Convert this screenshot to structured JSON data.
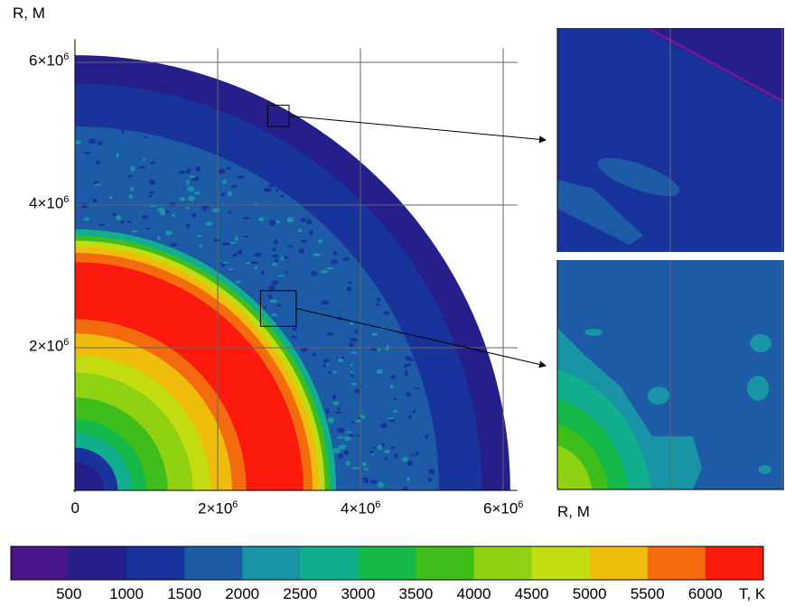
{
  "chart_data": {
    "type": "heatmap",
    "main_plot": {
      "ylabel": "R, M",
      "x_ticks": [
        {
          "value": 0,
          "label": "0"
        },
        {
          "value": 2000000,
          "label": "2×10",
          "exp": "6"
        },
        {
          "value": 4000000,
          "label": "4×10",
          "exp": "6"
        },
        {
          "value": 6000000,
          "label": "6×10",
          "exp": "6"
        }
      ],
      "y_ticks": [
        {
          "value": 2000000,
          "label": "2×10",
          "exp": "6"
        },
        {
          "value": 4000000,
          "label": "4×10",
          "exp": "6"
        },
        {
          "value": 6000000,
          "label": "6×10",
          "exp": "6"
        }
      ],
      "xlim": [
        0,
        6200000
      ],
      "ylim": [
        0,
        6200000
      ],
      "grid": true,
      "outer_radius": 6100000,
      "temperature_zones": [
        {
          "r_max": 400000,
          "band": "500-1000"
        },
        {
          "r_max": 600000,
          "band": "1000-1500"
        },
        {
          "r_max": 800000,
          "band": "2500-3000"
        },
        {
          "r_max": 1000000,
          "band": "3000-3500"
        },
        {
          "r_max": 1300000,
          "band": "3500-4000"
        },
        {
          "r_max": 1650000,
          "band": "4000-4500"
        },
        {
          "r_max": 1900000,
          "band": "4500-5000"
        },
        {
          "r_max": 2200000,
          "band": "5000-5500"
        },
        {
          "r_max": 2400000,
          "band": "5500-6000"
        },
        {
          "r_max": 3200000,
          "band": "6000+"
        },
        {
          "r_max": 3330000,
          "band": "5500-6000"
        },
        {
          "r_max": 3420000,
          "band": "5000-5500"
        },
        {
          "r_max": 3500000,
          "band": "4500-5000"
        },
        {
          "r_max": 3570000,
          "band": "3500-4000"
        },
        {
          "r_max": 3660000,
          "band": "2500-3000"
        },
        {
          "r_max": 5100000,
          "band": "1500-2000"
        },
        {
          "r_max": 5700000,
          "band": "1000-1500"
        },
        {
          "r_max": 6100000,
          "band": "500-1000"
        }
      ]
    },
    "zoom_panels": [
      {
        "name": "outer-zoom",
        "source_x": [
          2700000,
          3000000
        ],
        "source_y": [
          5100000,
          5400000
        ]
      },
      {
        "name": "inner-zoom",
        "source_x": [
          2600000,
          3100000
        ],
        "source_y": [
          2300000,
          2800000
        ]
      }
    ],
    "zoom_xlabel": "R, M",
    "colorbar": {
      "label": "T, K",
      "ticks": [
        "500",
        "1000",
        "1500",
        "2000",
        "2500",
        "3000",
        "3500",
        "4000",
        "4500",
        "5000",
        "5500",
        "6000"
      ],
      "colors": [
        "#4a148a",
        "#251f8c",
        "#18349c",
        "#1e5ba6",
        "#1894a6",
        "#12af8f",
        "#14b94a",
        "#3fbd1a",
        "#8fd212",
        "#c3dc12",
        "#efbc0c",
        "#f36b0c",
        "#fb1a0c"
      ]
    }
  }
}
